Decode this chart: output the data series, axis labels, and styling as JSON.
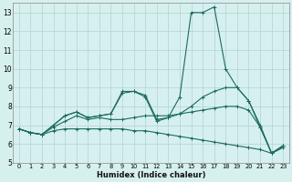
{
  "xlabel": "Humidex (Indice chaleur)",
  "background_color": "#d6f0ef",
  "grid_color": "#b8d8d4",
  "line_color": "#1a6b5e",
  "xlim": [
    -0.5,
    23.5
  ],
  "ylim": [
    5,
    13.5
  ],
  "yticks": [
    5,
    6,
    7,
    8,
    9,
    10,
    11,
    12,
    13
  ],
  "xticks": [
    0,
    1,
    2,
    3,
    4,
    5,
    6,
    7,
    8,
    9,
    10,
    11,
    12,
    13,
    14,
    15,
    16,
    17,
    18,
    19,
    20,
    21,
    22,
    23
  ],
  "series": [
    {
      "x": [
        0,
        1,
        2,
        3,
        4,
        5,
        6,
        7,
        8,
        9,
        10,
        11,
        12,
        13,
        14,
        15,
        16,
        17,
        18,
        19,
        20,
        21,
        22,
        23
      ],
      "y": [
        6.8,
        6.6,
        6.5,
        6.7,
        6.8,
        6.8,
        6.8,
        6.8,
        6.8,
        6.8,
        6.7,
        6.7,
        6.6,
        6.5,
        6.4,
        6.3,
        6.2,
        6.1,
        6.0,
        5.9,
        5.8,
        5.7,
        5.5,
        5.8
      ]
    },
    {
      "x": [
        0,
        1,
        2,
        3,
        4,
        5,
        6,
        7,
        8,
        9,
        10,
        11,
        12,
        13,
        14,
        15,
        16,
        17,
        18,
        19,
        20,
        21,
        22,
        23
      ],
      "y": [
        6.8,
        6.6,
        6.5,
        6.9,
        7.2,
        7.5,
        7.3,
        7.4,
        7.3,
        7.3,
        7.4,
        7.5,
        7.5,
        7.5,
        7.6,
        7.7,
        7.8,
        7.9,
        8.0,
        8.0,
        7.8,
        6.9,
        5.5,
        5.9
      ]
    },
    {
      "x": [
        0,
        1,
        2,
        3,
        4,
        5,
        6,
        7,
        8,
        9,
        10,
        11,
        12,
        13,
        14,
        15,
        16,
        17,
        18,
        19,
        20,
        21,
        22,
        23
      ],
      "y": [
        6.8,
        6.6,
        6.5,
        7.0,
        7.5,
        7.7,
        7.4,
        7.5,
        7.6,
        8.7,
        8.8,
        8.5,
        7.2,
        7.4,
        7.6,
        8.0,
        8.5,
        8.8,
        9.0,
        9.0,
        8.3,
        6.9,
        5.5,
        5.9
      ]
    },
    {
      "x": [
        0,
        1,
        2,
        3,
        4,
        5,
        6,
        7,
        8,
        9,
        10,
        11,
        12,
        13,
        14,
        15,
        16,
        17,
        18,
        19,
        20,
        21,
        22,
        23
      ],
      "y": [
        6.8,
        6.6,
        6.5,
        7.0,
        7.5,
        7.7,
        7.4,
        7.5,
        7.6,
        8.8,
        8.8,
        8.6,
        7.3,
        7.4,
        8.5,
        13.0,
        13.0,
        13.3,
        10.0,
        9.0,
        8.3,
        7.0,
        5.5,
        5.9
      ]
    }
  ]
}
